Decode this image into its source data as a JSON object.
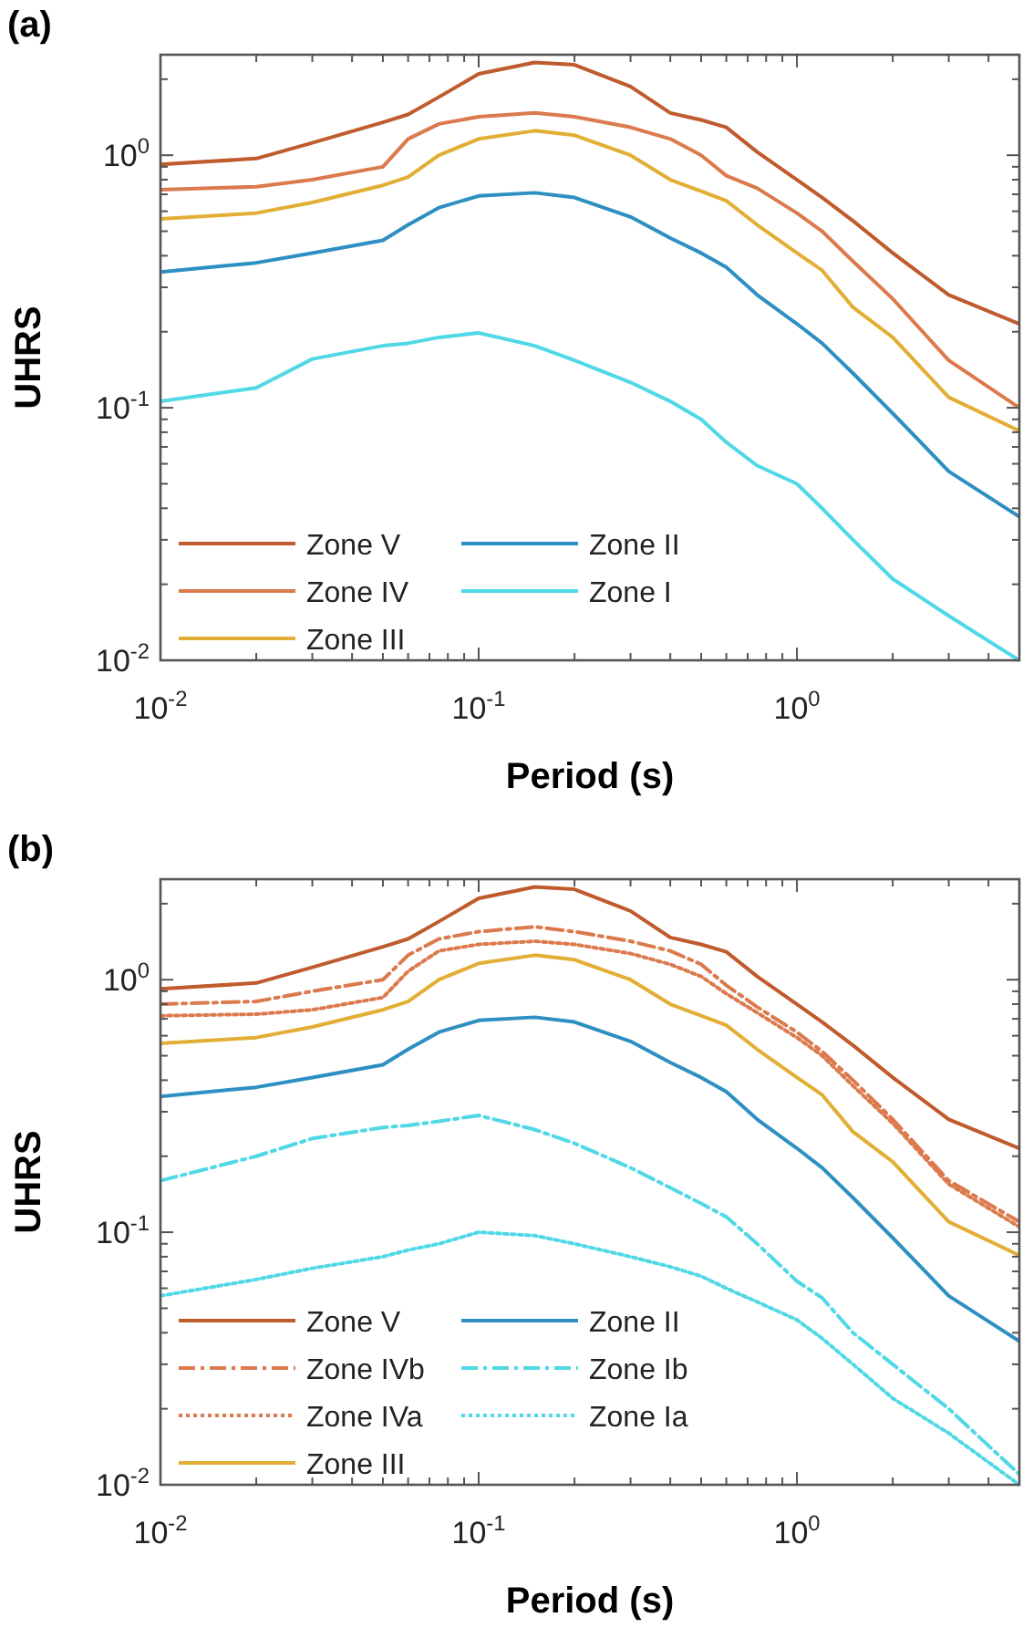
{
  "chart_data": [
    {
      "type": "line",
      "title": "(a)",
      "xlabel": "Period (s)",
      "ylabel": "UHRS",
      "log": "xy",
      "legend": "bottom left",
      "xlim": [
        0.01,
        5
      ],
      "ylim": [
        0.01,
        2.5
      ],
      "x": [
        0.01,
        0.02,
        0.03,
        0.05,
        0.06,
        0.075,
        0.1,
        0.15,
        0.2,
        0.3,
        0.4,
        0.5,
        0.6,
        0.75,
        1,
        1.2,
        1.5,
        2,
        3,
        5
      ],
      "xticks": [
        {
          "value": 0.01,
          "label": "10$^{-2}$"
        },
        {
          "value": 0.02,
          "label": null
        },
        {
          "value": 0.03,
          "label": null
        },
        {
          "value": 0.04,
          "label": null
        },
        {
          "value": 0.05,
          "label": null
        },
        {
          "value": 0.06,
          "label": null
        },
        {
          "value": 0.07,
          "label": null
        },
        {
          "value": 0.08,
          "label": null
        },
        {
          "value": 0.09,
          "label": null
        },
        {
          "value": 0.1,
          "label": "10$^{-1}$"
        },
        {
          "value": 0.2,
          "label": null
        },
        {
          "value": 0.3,
          "label": null
        },
        {
          "value": 0.4,
          "label": null
        },
        {
          "value": 0.5,
          "label": null
        },
        {
          "value": 0.6,
          "label": null
        },
        {
          "value": 0.7,
          "label": null
        },
        {
          "value": 0.8,
          "label": null
        },
        {
          "value": 0.9,
          "label": null
        },
        {
          "value": 1,
          "label": "10$^{0}$"
        },
        {
          "value": 2,
          "label": null
        },
        {
          "value": 3,
          "label": null
        },
        {
          "value": 4,
          "label": null
        },
        {
          "value": 5,
          "label": null
        }
      ],
      "yticks": [
        {
          "value": 0.01,
          "label": "10$^{-2}$"
        },
        {
          "value": 0.02,
          "label": null
        },
        {
          "value": 0.03,
          "label": null
        },
        {
          "value": 0.04,
          "label": null
        },
        {
          "value": 0.05,
          "label": null
        },
        {
          "value": 0.06,
          "label": null
        },
        {
          "value": 0.07,
          "label": null
        },
        {
          "value": 0.08,
          "label": null
        },
        {
          "value": 0.09,
          "label": null
        },
        {
          "value": 0.1,
          "label": "10$^{-1}$"
        },
        {
          "value": 0.2,
          "label": null
        },
        {
          "value": 0.3,
          "label": null
        },
        {
          "value": 0.4,
          "label": null
        },
        {
          "value": 0.5,
          "label": null
        },
        {
          "value": 0.6,
          "label": null
        },
        {
          "value": 0.7,
          "label": null
        },
        {
          "value": 0.8,
          "label": null
        },
        {
          "value": 0.9,
          "label": null
        },
        {
          "value": 1,
          "label": "10$^{0}$"
        },
        {
          "value": 2,
          "label": null
        }
      ],
      "series": [
        {
          "name": "Zone V",
          "color": "#bf5b2c",
          "line_style": "solid",
          "values": [
            0.92,
            0.97,
            1.12,
            1.35,
            1.45,
            1.7,
            2.1,
            2.33,
            2.28,
            1.87,
            1.47,
            1.38,
            1.29,
            1.03,
            0.8,
            0.68,
            0.55,
            0.41,
            0.28,
            0.215
          ]
        },
        {
          "name": "Zone IV",
          "color": "#db7a4c",
          "line_style": "solid",
          "values": [
            0.73,
            0.75,
            0.8,
            0.9,
            1.16,
            1.33,
            1.42,
            1.47,
            1.42,
            1.29,
            1.16,
            1.0,
            0.83,
            0.74,
            0.59,
            0.5,
            0.38,
            0.27,
            0.154,
            0.1
          ]
        },
        {
          "name": "Zone III",
          "color": "#e2ae35",
          "line_style": "solid",
          "values": [
            0.56,
            0.59,
            0.65,
            0.76,
            0.82,
            1.0,
            1.16,
            1.25,
            1.2,
            1.0,
            0.8,
            0.72,
            0.66,
            0.53,
            0.41,
            0.35,
            0.25,
            0.19,
            0.11,
            0.081
          ]
        },
        {
          "name": "Zone II",
          "color": "#2e8fc2",
          "line_style": "solid",
          "values": [
            0.345,
            0.375,
            0.41,
            0.46,
            0.53,
            0.62,
            0.69,
            0.71,
            0.68,
            0.57,
            0.47,
            0.41,
            0.36,
            0.28,
            0.215,
            0.18,
            0.137,
            0.095,
            0.056,
            0.037
          ]
        },
        {
          "name": "Zone I",
          "color": "#50d8e6",
          "line_style": "solid",
          "values": [
            0.106,
            0.12,
            0.156,
            0.176,
            0.18,
            0.19,
            0.198,
            0.176,
            0.154,
            0.126,
            0.106,
            0.09,
            0.073,
            0.059,
            0.05,
            0.04,
            0.03,
            0.021,
            0.015,
            0.01
          ]
        }
      ]
    },
    {
      "type": "line",
      "title": "(b)",
      "xlabel": "Period (s)",
      "ylabel": "UHRS",
      "log": "xy",
      "legend": "bottom left",
      "xlim": [
        0.01,
        5
      ],
      "ylim": [
        0.01,
        2.5
      ],
      "x": [
        0.01,
        0.02,
        0.03,
        0.05,
        0.06,
        0.075,
        0.1,
        0.15,
        0.2,
        0.3,
        0.4,
        0.5,
        0.6,
        0.75,
        1,
        1.2,
        1.5,
        2,
        3,
        5
      ],
      "xticks": [
        {
          "value": 0.01,
          "label": "10$^{-2}$"
        },
        {
          "value": 0.02,
          "label": null
        },
        {
          "value": 0.03,
          "label": null
        },
        {
          "value": 0.04,
          "label": null
        },
        {
          "value": 0.05,
          "label": null
        },
        {
          "value": 0.06,
          "label": null
        },
        {
          "value": 0.07,
          "label": null
        },
        {
          "value": 0.08,
          "label": null
        },
        {
          "value": 0.09,
          "label": null
        },
        {
          "value": 0.1,
          "label": "10$^{-1}$"
        },
        {
          "value": 0.2,
          "label": null
        },
        {
          "value": 0.3,
          "label": null
        },
        {
          "value": 0.4,
          "label": null
        },
        {
          "value": 0.5,
          "label": null
        },
        {
          "value": 0.6,
          "label": null
        },
        {
          "value": 0.7,
          "label": null
        },
        {
          "value": 0.8,
          "label": null
        },
        {
          "value": 0.9,
          "label": null
        },
        {
          "value": 1,
          "label": "10$^{0}$"
        },
        {
          "value": 2,
          "label": null
        },
        {
          "value": 3,
          "label": null
        },
        {
          "value": 4,
          "label": null
        },
        {
          "value": 5,
          "label": null
        }
      ],
      "yticks": [
        {
          "value": 0.01,
          "label": "10$^{-2}$"
        },
        {
          "value": 0.02,
          "label": null
        },
        {
          "value": 0.03,
          "label": null
        },
        {
          "value": 0.04,
          "label": null
        },
        {
          "value": 0.05,
          "label": null
        },
        {
          "value": 0.06,
          "label": null
        },
        {
          "value": 0.07,
          "label": null
        },
        {
          "value": 0.08,
          "label": null
        },
        {
          "value": 0.09,
          "label": null
        },
        {
          "value": 0.1,
          "label": "10$^{-1}$"
        },
        {
          "value": 0.2,
          "label": null
        },
        {
          "value": 0.3,
          "label": null
        },
        {
          "value": 0.4,
          "label": null
        },
        {
          "value": 0.5,
          "label": null
        },
        {
          "value": 0.6,
          "label": null
        },
        {
          "value": 0.7,
          "label": null
        },
        {
          "value": 0.8,
          "label": null
        },
        {
          "value": 0.9,
          "label": null
        },
        {
          "value": 1,
          "label": "10$^{0}$"
        },
        {
          "value": 2,
          "label": null
        }
      ],
      "series": [
        {
          "name": "Zone V",
          "color": "#bf5b2c",
          "line_style": "solid",
          "values": [
            0.92,
            0.97,
            1.12,
            1.35,
            1.45,
            1.7,
            2.1,
            2.33,
            2.28,
            1.87,
            1.47,
            1.38,
            1.29,
            1.03,
            0.8,
            0.68,
            0.55,
            0.41,
            0.28,
            0.215
          ]
        },
        {
          "name": "Zone IVb",
          "color": "#db7a4c",
          "line_style": "dashed",
          "values": [
            0.8,
            0.82,
            0.9,
            1.0,
            1.25,
            1.45,
            1.55,
            1.62,
            1.55,
            1.42,
            1.3,
            1.15,
            0.95,
            0.78,
            0.62,
            0.52,
            0.4,
            0.28,
            0.16,
            0.11
          ]
        },
        {
          "name": "Zone IVa",
          "color": "#db7a4c",
          "line_style": "dotted",
          "values": [
            0.72,
            0.73,
            0.76,
            0.85,
            1.08,
            1.3,
            1.38,
            1.42,
            1.38,
            1.27,
            1.15,
            1.03,
            0.88,
            0.74,
            0.59,
            0.5,
            0.38,
            0.27,
            0.155,
            0.105
          ]
        },
        {
          "name": "Zone III",
          "color": "#e2ae35",
          "line_style": "solid",
          "values": [
            0.56,
            0.59,
            0.65,
            0.76,
            0.82,
            1.0,
            1.16,
            1.25,
            1.2,
            1.0,
            0.8,
            0.72,
            0.66,
            0.53,
            0.41,
            0.35,
            0.25,
            0.19,
            0.11,
            0.081
          ]
        },
        {
          "name": "Zone II",
          "color": "#2e8fc2",
          "line_style": "solid",
          "values": [
            0.345,
            0.375,
            0.41,
            0.46,
            0.53,
            0.62,
            0.69,
            0.71,
            0.68,
            0.57,
            0.47,
            0.41,
            0.36,
            0.28,
            0.215,
            0.18,
            0.137,
            0.095,
            0.056,
            0.037
          ]
        },
        {
          "name": "Zone Ib",
          "color": "#50d8e6",
          "line_style": "dashed",
          "values": [
            0.16,
            0.2,
            0.235,
            0.26,
            0.265,
            0.275,
            0.29,
            0.255,
            0.225,
            0.18,
            0.15,
            0.13,
            0.115,
            0.09,
            0.064,
            0.055,
            0.04,
            0.03,
            0.02,
            0.011
          ]
        },
        {
          "name": "Zone Ia",
          "color": "#50d8e6",
          "line_style": "dotted",
          "values": [
            0.056,
            0.065,
            0.072,
            0.08,
            0.085,
            0.09,
            0.1,
            0.097,
            0.09,
            0.08,
            0.073,
            0.067,
            0.06,
            0.053,
            0.045,
            0.038,
            0.03,
            0.022,
            0.016,
            0.01
          ]
        }
      ]
    }
  ]
}
